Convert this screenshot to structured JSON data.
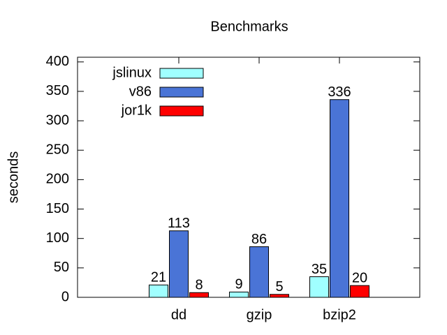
{
  "chart_data": {
    "type": "bar",
    "title": "Benchmarks",
    "y_label": "seconds",
    "categories": [
      "dd",
      "gzip",
      "bzip2"
    ],
    "series": [
      {
        "name": "jslinux",
        "color": "#a0ffff",
        "values": [
          21,
          9,
          35
        ]
      },
      {
        "name": "v86",
        "color": "#4a74d6",
        "values": [
          113,
          86,
          336
        ]
      },
      {
        "name": "jor1k",
        "color": "#ff0000",
        "values": [
          8,
          5,
          20
        ]
      }
    ],
    "ylim": [
      0,
      408
    ],
    "yticks": [
      0,
      50,
      100,
      150,
      200,
      250,
      300,
      350,
      400
    ],
    "legend": "top-left"
  }
}
